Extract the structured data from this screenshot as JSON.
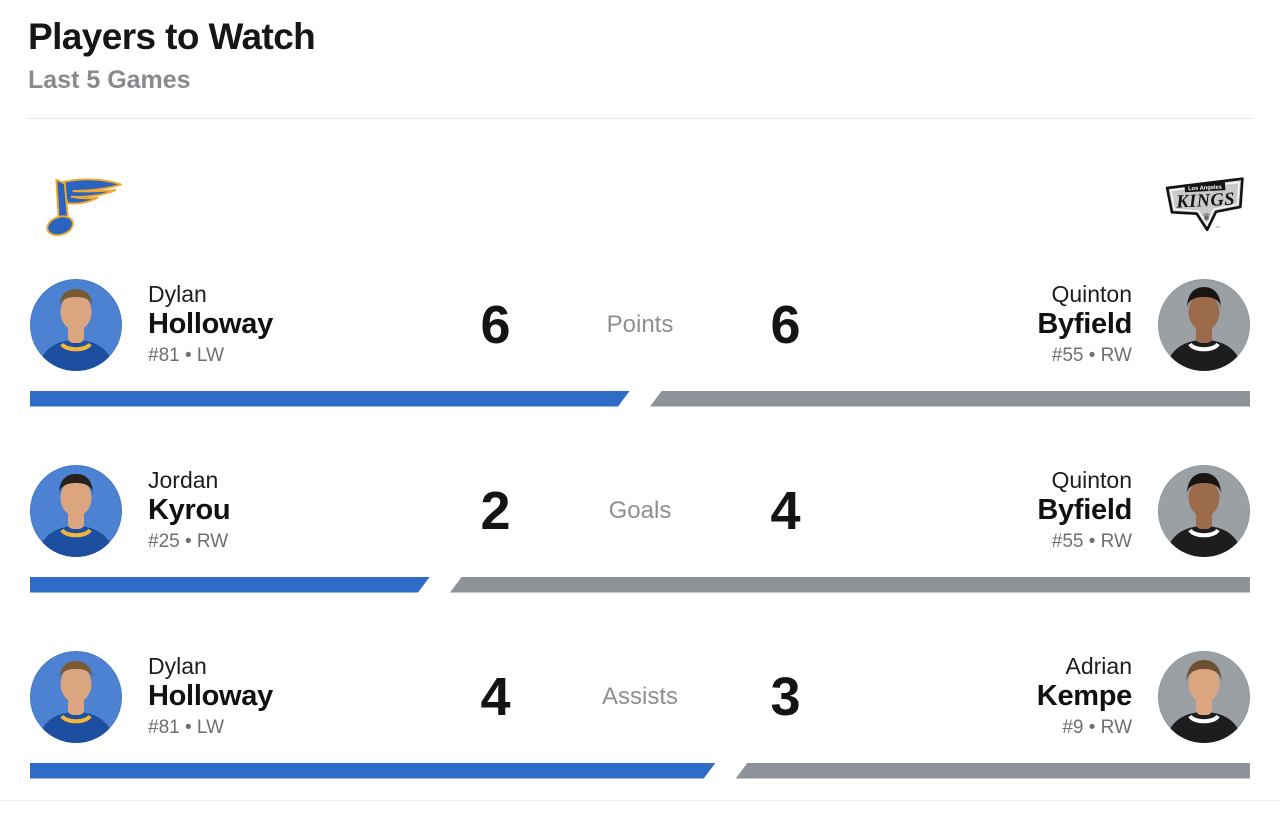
{
  "header": {
    "title": "Players to Watch",
    "subtitle": "Last 5 Games"
  },
  "teams": {
    "home": {
      "name": "St. Louis Blues",
      "icon": "blues-note-icon"
    },
    "away": {
      "name": "Los Angeles Kings",
      "icon": "kings-shield-icon",
      "city_label": "Los Angeles",
      "wordmark": "KINGS",
      "crown_glyph": "♛",
      "tm": "™"
    }
  },
  "colors": {
    "home_bar": "#2e6cc8",
    "away_bar": "#8e939a",
    "blues_blue": "#2a63c0",
    "blues_gold": "#f0a92e",
    "kings_silver": "#c8cacc",
    "kings_black": "#141414"
  },
  "rows": [
    {
      "stat": "Points",
      "home": {
        "first": "Dylan",
        "last": "Holloway",
        "info": "#81 • LW",
        "value": "6"
      },
      "away": {
        "first": "Quinton",
        "last": "Byfield",
        "info": "#55 • RW",
        "value": "6"
      }
    },
    {
      "stat": "Goals",
      "home": {
        "first": "Jordan",
        "last": "Kyrou",
        "info": "#25 • RW",
        "value": "2"
      },
      "away": {
        "first": "Quinton",
        "last": "Byfield",
        "info": "#55 • RW",
        "value": "4"
      }
    },
    {
      "stat": "Assists",
      "home": {
        "first": "Dylan",
        "last": "Holloway",
        "info": "#81 • LW",
        "value": "4"
      },
      "away": {
        "first": "Adrian",
        "last": "Kempe",
        "info": "#9 • RW",
        "value": "3"
      }
    }
  ]
}
